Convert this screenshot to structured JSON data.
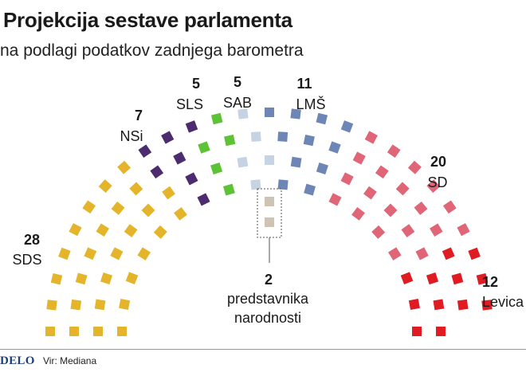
{
  "title": "Projekcija sestave parlamenta",
  "subtitle": "na podlagi podatkov zadnjega barometra",
  "footer": {
    "logo": "DELO",
    "source": "Vir: Mediana"
  },
  "chart_data": {
    "type": "parliament",
    "total_seats": 90,
    "series": [
      {
        "name": "SDS",
        "value": 28,
        "color": "#e4b52b"
      },
      {
        "name": "NSi",
        "value": 7,
        "color": "#4c2c6e"
      },
      {
        "name": "SLS",
        "value": 5,
        "color": "#5ec236"
      },
      {
        "name": "SAB",
        "value": 5,
        "color": "#c5d3e3"
      },
      {
        "name": "LMŠ",
        "value": 11,
        "color": "#6d86b6"
      },
      {
        "name": "SD",
        "value": 20,
        "color": "#df6577"
      },
      {
        "name": "Levica",
        "value": 12,
        "color": "#e01b22"
      }
    ],
    "special": {
      "count": "2",
      "label_line1": "predstavnika",
      "label_line2": "narodnosti",
      "color": "#cfc3b4"
    }
  }
}
